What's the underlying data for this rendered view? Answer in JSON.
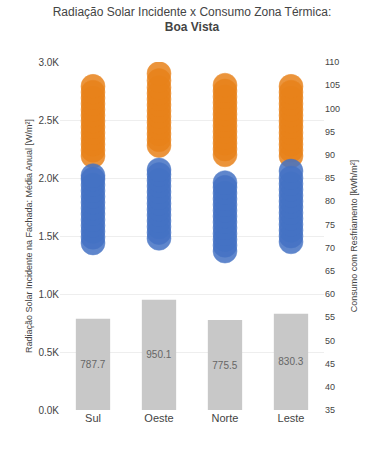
{
  "chart_data": {
    "type": "bar",
    "title": "Radiação Solar Incidente x Consumo Zona Térmica:",
    "subtitle": "Boa Vista",
    "categories": [
      "Sul",
      "Oeste",
      "Norte",
      "Leste"
    ],
    "series": [
      {
        "type": "bar",
        "color": "#c8c8c8",
        "data_labels": true,
        "values": [
          787.7,
          950.1,
          775.5,
          830.3
        ]
      },
      {
        "type": "scatter",
        "marker": "circle",
        "color": "#e8821a",
        "values": [
          [
            2190,
            2240,
            2290,
            2340,
            2390,
            2440,
            2490,
            2540,
            2590,
            2640,
            2690,
            2740,
            2790
          ],
          [
            2280,
            2330,
            2380,
            2430,
            2480,
            2530,
            2580,
            2630,
            2680,
            2730,
            2780,
            2840,
            2900
          ],
          [
            2200,
            2250,
            2300,
            2350,
            2400,
            2450,
            2500,
            2550,
            2600,
            2650,
            2700,
            2750,
            2800
          ],
          [
            2190,
            2240,
            2290,
            2340,
            2390,
            2440,
            2490,
            2540,
            2590,
            2640,
            2690,
            2740,
            2790
          ]
        ]
      },
      {
        "type": "scatter",
        "marker": "circle",
        "color": "#4472c4",
        "values": [
          [
            1440,
            1490,
            1540,
            1590,
            1640,
            1690,
            1740,
            1790,
            1840,
            1890,
            1940,
            1990,
            2020
          ],
          [
            1480,
            1530,
            1580,
            1630,
            1680,
            1730,
            1780,
            1830,
            1880,
            1930,
            1980,
            2030,
            2070
          ],
          [
            1370,
            1420,
            1470,
            1520,
            1570,
            1620,
            1670,
            1720,
            1770,
            1820,
            1870,
            1920,
            1960
          ],
          [
            1450,
            1500,
            1550,
            1600,
            1650,
            1700,
            1750,
            1800,
            1850,
            1900,
            1950,
            2000,
            2060
          ]
        ]
      }
    ],
    "ylabel": "Radiação Solar Incidente na Fachada: Média Anual [W/m²]",
    "y2label": "Consumo com Resfriamento [kWh/m²]",
    "ylim": [
      0,
      3000
    ],
    "yticks": [
      {
        "value": 0,
        "label": "0.0K"
      },
      {
        "value": 500,
        "label": "0.5K"
      },
      {
        "value": 1000,
        "label": "1.0K"
      },
      {
        "value": 1500,
        "label": "1.5K"
      },
      {
        "value": 2000,
        "label": "2.0K"
      },
      {
        "value": 2500,
        "label": "2.5K"
      },
      {
        "value": 3000,
        "label": "3.0K"
      }
    ],
    "y2lim": [
      35,
      110
    ],
    "y2ticks": [
      35,
      40,
      45,
      50,
      55,
      60,
      65,
      70,
      75,
      80,
      85,
      90,
      95,
      100,
      105,
      110
    ],
    "grid": true
  }
}
